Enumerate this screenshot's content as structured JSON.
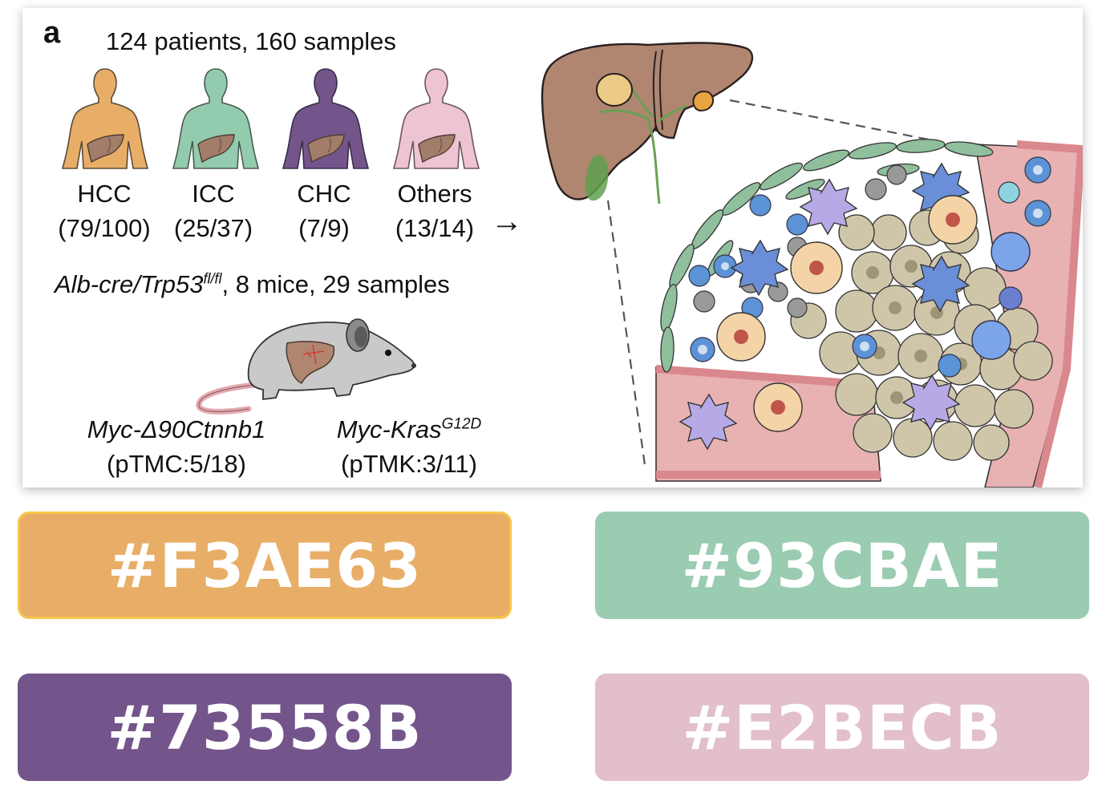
{
  "figure": {
    "panel_letter": "a",
    "patients_header": "124 patients, 160 samples",
    "groups": [
      {
        "name": "HCC",
        "counts": "(79/100)",
        "color": "#E8AE67"
      },
      {
        "name": "ICC",
        "counts": "(25/37)",
        "color": "#93CBAE"
      },
      {
        "name": "CHC",
        "counts": "(7/9)",
        "color": "#73558B"
      },
      {
        "name": "Others",
        "counts": "(13/14)",
        "color": "#EEC3D2"
      }
    ],
    "arrow": "→",
    "mouse_model": {
      "genotype": "Alb-cre/Trp53",
      "genotype_sup": "fl/fl",
      "details": ", 8 mice, 29 samples"
    },
    "mouse_models": [
      {
        "name_prefix": "Myc-Δ90",
        "name_main": "Ctnnb1",
        "name_sup": "",
        "counts": "(pTMC:5/18)"
      },
      {
        "name_prefix": "",
        "name_main": "Myc-Kras",
        "name_sup": "G12D",
        "counts": "(pTMK:3/11)"
      }
    ]
  },
  "swatches": [
    {
      "label": "#F3AE63",
      "color": "#E8AE67"
    },
    {
      "label": "#93CBAE",
      "color": "#99CCB1"
    },
    {
      "label": "#73558B",
      "color": "#73558B"
    },
    {
      "label": "#E2BECB",
      "color": "#E2BFCA"
    }
  ]
}
